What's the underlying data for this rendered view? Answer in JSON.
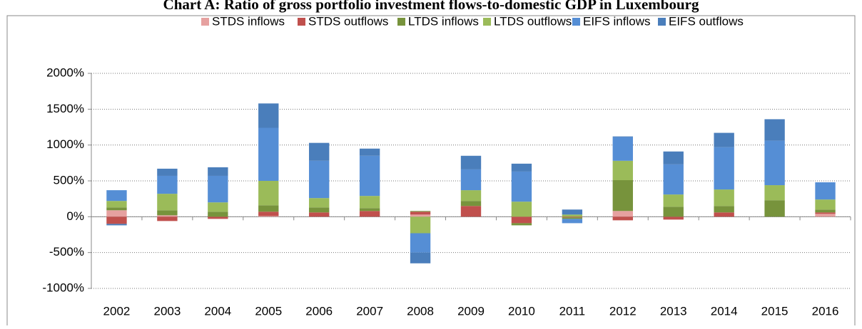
{
  "chart_data": {
    "type": "bar",
    "stacked": true,
    "title": "Chart A: Ratio of gross portfolio investment flows-to-domestic GDP in Luxembourg",
    "categories": [
      "2002",
      "2003",
      "2004",
      "2005",
      "2006",
      "2007",
      "2008",
      "2009",
      "2010",
      "2011",
      "2012",
      "2013",
      "2014",
      "2015",
      "2016"
    ],
    "series": [
      {
        "name": "STDS inflows",
        "color": "#e6a1a0",
        "values": [
          90,
          20,
          0,
          10,
          0,
          0,
          30,
          0,
          0,
          0,
          80,
          0,
          0,
          0,
          40
        ]
      },
      {
        "name": "STDS outflows",
        "color": "#c0504d",
        "values": [
          -100,
          -60,
          -30,
          60,
          60,
          80,
          40,
          150,
          -90,
          -10,
          -50,
          -40,
          60,
          0,
          20
        ]
      },
      {
        "name": "LTDS inflows",
        "color": "#77933c",
        "values": [
          40,
          70,
          70,
          90,
          70,
          40,
          10,
          70,
          -30,
          -20,
          430,
          140,
          90,
          230,
          40
        ]
      },
      {
        "name": "LTDS outflows",
        "color": "#9bbb59",
        "values": [
          90,
          230,
          130,
          340,
          130,
          170,
          -230,
          150,
          210,
          30,
          270,
          170,
          230,
          210,
          140
        ]
      },
      {
        "name": "EIFS inflows",
        "color": "#558ed5",
        "values": [
          150,
          250,
          370,
          740,
          520,
          560,
          -270,
          290,
          420,
          -60,
          330,
          420,
          590,
          620,
          240
        ]
      },
      {
        "name": "EIFS outflows",
        "color": "#4a7ebb",
        "values": [
          -20,
          100,
          120,
          340,
          250,
          100,
          -150,
          190,
          110,
          70,
          10,
          180,
          200,
          300,
          0
        ]
      }
    ],
    "ylim": [
      -1000,
      2000
    ],
    "yticks": [
      {
        "value": -1000,
        "label": "-1000%"
      },
      {
        "value": -500,
        "label": "-500%"
      },
      {
        "value": 0,
        "label": "0%"
      },
      {
        "value": 500,
        "label": "500%"
      },
      {
        "value": 1000,
        "label": "1000%"
      },
      {
        "value": 1500,
        "label": "1500%"
      },
      {
        "value": 2000,
        "label": "2000%"
      }
    ],
    "grid": true,
    "legend": "top"
  }
}
